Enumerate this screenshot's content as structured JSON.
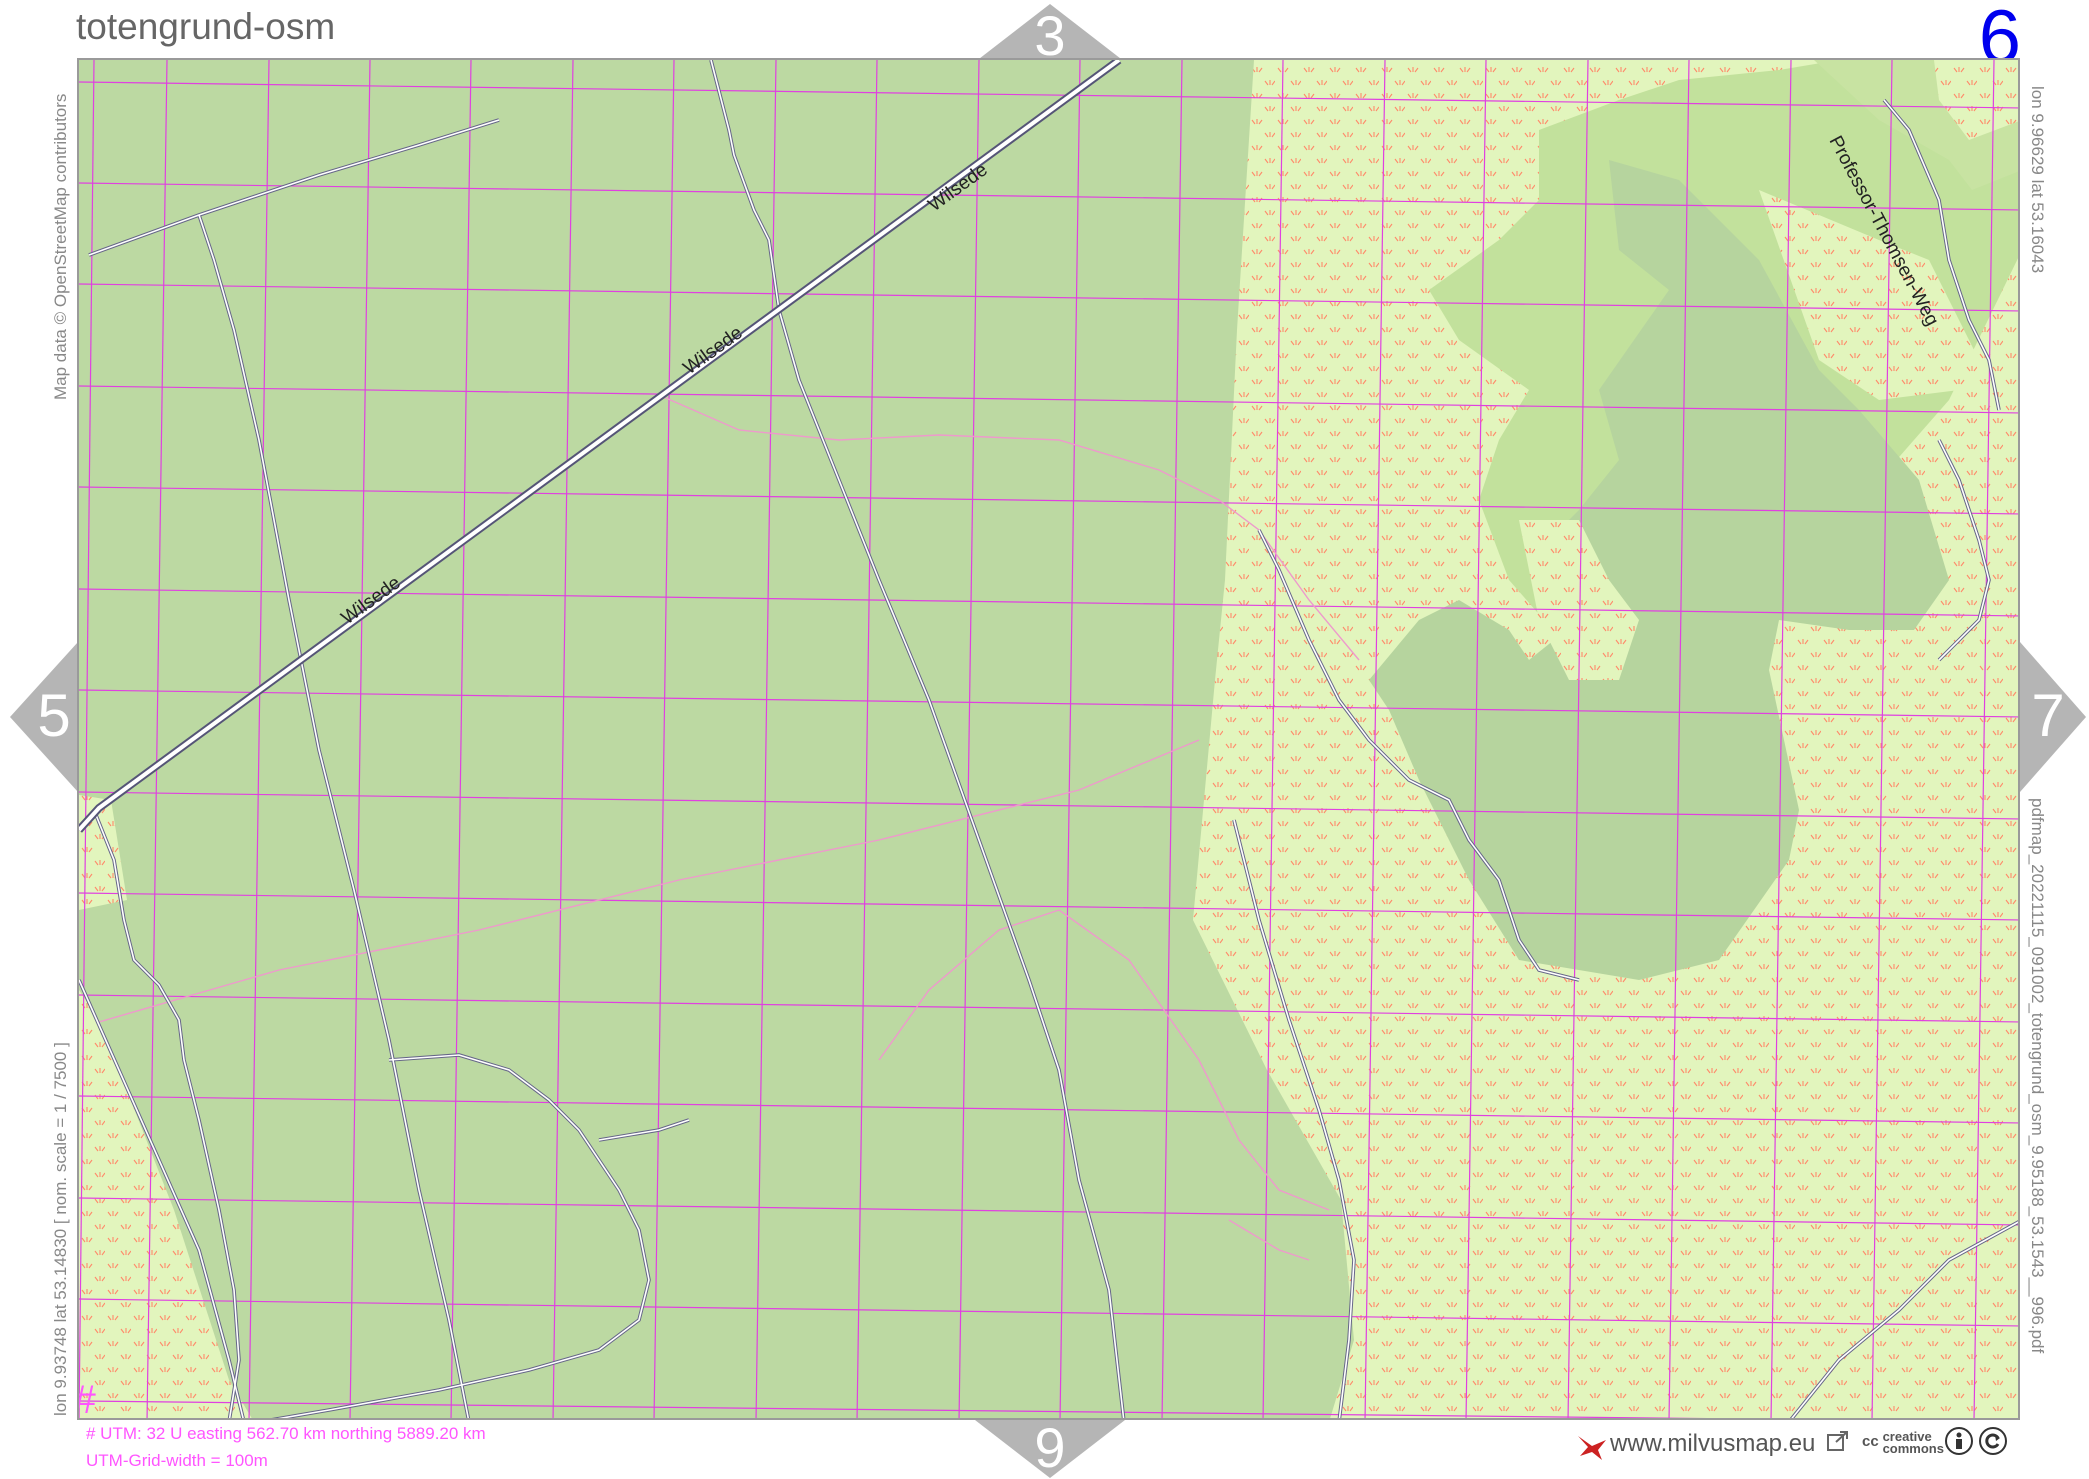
{
  "map_title": "totengrund-osm",
  "page_number": "6",
  "nav": {
    "top": "3",
    "bottom": "9",
    "left": "5",
    "right": "7"
  },
  "attribution": "Map data © OpenStreetMap contributors",
  "coord_top_right": "lon 9.96629 lat 53.16043",
  "coord_bottom_left": "lon 9.93748 lat 53.14830 [ nom. scale = 1 / 7500 ]",
  "file_name": "pdfmap_20221115_091002_totengrund_osm_9.95188_53.1543__996.pdf",
  "utm_line": "# UTM: 32 U easting 562.70 km northing 5889.20 km",
  "grid_width": "UTM-Grid-width = 100m",
  "grid_marker": "#",
  "site_url": "www.milvusmap.eu",
  "license_text": "creative commons",
  "cc_mark": "cc",
  "road_labels": {
    "wilsede_1": "Wilsede",
    "wilsede_2": "Wilsede",
    "wilsede_3": "Wilsede",
    "professor": "Professor-Thomsen-Weg"
  },
  "colors": {
    "forest": "#bcd9a2",
    "heath": "#e2f5bd",
    "heath_symbol": "#ff8a6a",
    "grid": "#e040e0",
    "road_casing": "#555577",
    "title": "#666666",
    "page_number": "#0000ee",
    "nav": "#b5b5b5"
  },
  "icons": [
    "milvus-bird-icon",
    "external-link-icon",
    "cc-by-icon",
    "cc-sa-icon"
  ]
}
